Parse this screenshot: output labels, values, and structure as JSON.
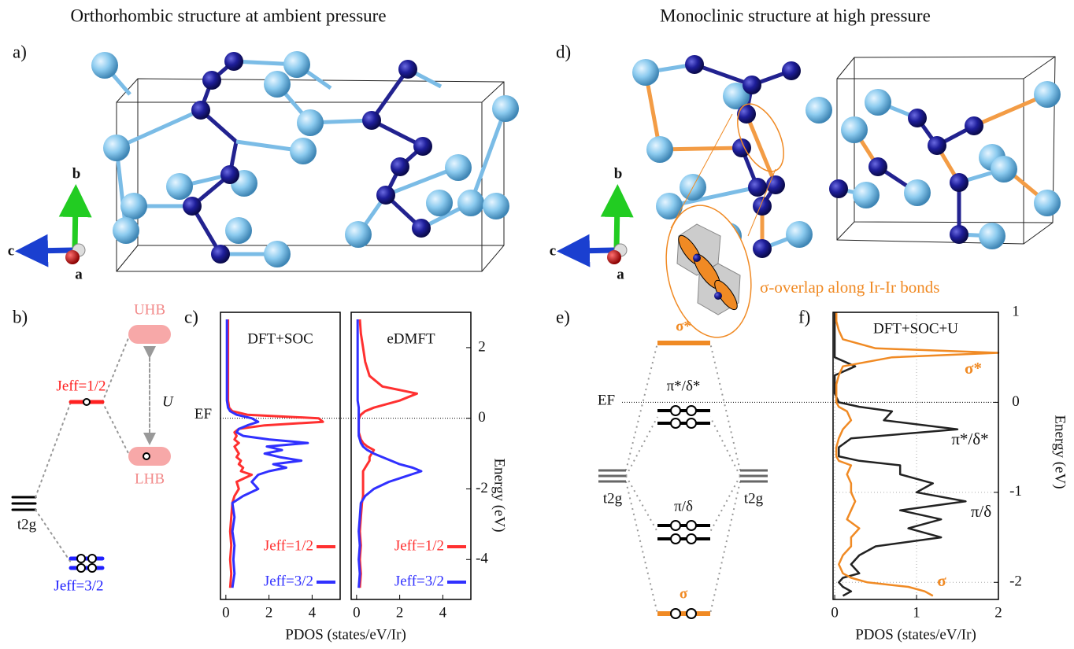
{
  "titles": [
    "Orthorhombic structure at ambient pressure",
    "Monoclinic structure at high pressure"
  ],
  "panel_labels": [
    "a)",
    "b)",
    "c)",
    "d)",
    "e)",
    "f)"
  ],
  "structures": [
    {
      "axes": [
        "b",
        "c",
        "a"
      ]
    },
    {
      "axes": [
        "b",
        "c",
        "a"
      ],
      "annotation": "σ-overlap along Ir-Ir bonds"
    }
  ],
  "diagram_b": {
    "upper": "UHB",
    "lower": "LHB",
    "interaction": "U",
    "jhalf": "Jeff=1/2",
    "jthreehalf": "Jeff=3/2",
    "t2g": "t2g"
  },
  "diagram_e": {
    "sigma_star": "σ*",
    "pi_star": "π*/δ*",
    "pi": "π/δ",
    "sigma": "σ",
    "fermi": "EF",
    "t2g_left": "t2g",
    "t2g_right": "t2g"
  },
  "chart_data": [
    {
      "type": "line",
      "orientation": "horizontal",
      "title": "DFT+SOC",
      "fermi_label": "EF",
      "legend": "lower right",
      "x": [
        -4.8,
        -4.4,
        -4,
        -3.6,
        -3.2,
        -2.8,
        -2.4,
        -2.2,
        -2.0,
        -1.8,
        -1.6,
        -1.5,
        -1.4,
        -1.3,
        -1.2,
        -1.1,
        -1.0,
        -0.9,
        -0.8,
        -0.7,
        -0.6,
        -0.5,
        -0.4,
        -0.3,
        -0.2,
        -0.1,
        0,
        0.1,
        0.2,
        0.3,
        0.5,
        0.7,
        0.9,
        1.2,
        1.6,
        2.0,
        2.4,
        2.8
      ],
      "series": [
        {
          "name": "Jeff=1/2",
          "color": "#ff3030",
          "values": [
            0.2,
            0.25,
            0.2,
            0.25,
            0.2,
            0.25,
            0.3,
            0.4,
            0.6,
            0.5,
            1.2,
            0.7,
            0.8,
            0.6,
            0.7,
            0.5,
            0.6,
            0.5,
            0.4,
            0.6,
            0.4,
            0.5,
            0.4,
            0.6,
            1.8,
            4.5,
            4.3,
            1.0,
            0.3,
            0.15,
            0.1,
            0.1,
            0.1,
            0.1,
            0.1,
            0.1,
            0.1,
            0.1
          ]
        },
        {
          "name": "Jeff=3/2",
          "color": "#3030ff",
          "values": [
            0.3,
            0.4,
            0.35,
            0.4,
            0.3,
            0.4,
            0.3,
            0.8,
            1.5,
            1.2,
            1.5,
            2.0,
            2.8,
            2.2,
            3.5,
            2.5,
            1.8,
            2.6,
            1.9,
            3.8,
            2.0,
            0.8,
            0.5,
            0.6,
            1.0,
            1.5,
            1.2,
            0.5,
            0.2,
            0.1,
            0.05,
            0.05,
            0.05,
            0.05,
            0.05,
            0.05,
            0.05,
            0.05
          ]
        }
      ],
      "xlim": [
        -5.13,
        3.0
      ],
      "ylim": [
        -0.25,
        5.3
      ],
      "yticks": [
        0,
        2,
        4
      ]
    },
    {
      "type": "line",
      "orientation": "horizontal",
      "title": "eDMFT",
      "legend": "lower right",
      "xlabel": "Energy (eV)",
      "ylabel": "PDOS (states/eV/Ir)",
      "x": [
        -4.8,
        -4.4,
        -4,
        -3.6,
        -3.2,
        -2.8,
        -2.4,
        -2.2,
        -2.0,
        -1.8,
        -1.6,
        -1.5,
        -1.4,
        -1.3,
        -1.2,
        -1.1,
        -1.0,
        -0.9,
        -0.8,
        -0.7,
        -0.6,
        -0.5,
        -0.4,
        -0.3,
        -0.2,
        -0.1,
        0,
        0.1,
        0.2,
        0.3,
        0.5,
        0.7,
        0.9,
        1.2,
        1.6,
        2.0,
        2.4,
        2.8
      ],
      "series": [
        {
          "name": "Jeff=1/2",
          "color": "#ff3030",
          "values": [
            0.15,
            0.2,
            0.15,
            0.2,
            0.15,
            0.2,
            0.25,
            0.3,
            0.3,
            0.3,
            0.3,
            0.3,
            0.4,
            0.5,
            0.6,
            0.6,
            0.7,
            0.8,
            0.5,
            0.3,
            0.2,
            0.15,
            0.1,
            0.1,
            0.1,
            0.1,
            0.1,
            0.2,
            0.4,
            0.8,
            2.0,
            2.8,
            1.2,
            0.6,
            0.4,
            0.3,
            0.2,
            0.15
          ]
        },
        {
          "name": "Jeff=3/2",
          "color": "#3030ff",
          "values": [
            0.1,
            0.15,
            0.1,
            0.15,
            0.1,
            0.15,
            0.2,
            0.4,
            0.8,
            1.5,
            2.5,
            3.0,
            2.6,
            2.0,
            1.6,
            1.2,
            0.8,
            0.5,
            0.3,
            0.2,
            0.15,
            0.1,
            0.1,
            0.1,
            0.1,
            0.1,
            0.1,
            0.1,
            0.1,
            0.1,
            0.05,
            0.05,
            0.05,
            0.05,
            0.05,
            0.05,
            0.05,
            0.05
          ]
        }
      ],
      "xlim": [
        -5.13,
        3.0
      ],
      "xticks": [
        -4,
        -2,
        0,
        2
      ],
      "ylim": [
        -0.25,
        5.3
      ],
      "yticks": [
        0,
        2,
        4
      ]
    },
    {
      "type": "line",
      "orientation": "horizontal",
      "title": "DFT+SOC+U",
      "grid": true,
      "fermi_line": true,
      "xlabel": "Energy (eV)",
      "ylabel": "PDOS (states/eV/Ir)",
      "annotations": [
        "σ*",
        "π*/δ*",
        "π/δ",
        "σ"
      ],
      "annotation_colors": [
        "#f08a24",
        "#111111",
        "#111111",
        "#f08a24"
      ],
      "x": [
        -2.15,
        -2.1,
        -2.05,
        -2.0,
        -1.95,
        -1.9,
        -1.8,
        -1.7,
        -1.6,
        -1.5,
        -1.4,
        -1.3,
        -1.2,
        -1.1,
        -1.0,
        -0.9,
        -0.8,
        -0.7,
        -0.65,
        -0.6,
        -0.5,
        -0.4,
        -0.3,
        -0.2,
        -0.1,
        -0.05,
        0,
        0.1,
        0.2,
        0.3,
        0.4,
        0.5,
        0.55,
        0.6,
        0.7,
        0.8,
        0.9,
        1.0
      ],
      "series": [
        {
          "color": "#222222",
          "values": [
            0.1,
            0.2,
            0.1,
            0.05,
            0.1,
            0.3,
            0.2,
            0.3,
            0.5,
            1.3,
            0.9,
            1.3,
            0.8,
            1.6,
            1.0,
            1.2,
            0.8,
            0.8,
            0.3,
            0.05,
            0.05,
            0.2,
            1.5,
            0.6,
            0.7,
            0.3,
            0.05,
            0,
            0,
            0,
            0.25,
            0,
            0,
            0,
            0,
            0,
            0,
            0
          ]
        },
        {
          "color": "#f08a24",
          "values": [
            1.2,
            1.1,
            0.9,
            0.4,
            0.2,
            0.1,
            0.05,
            0.1,
            0.2,
            0.2,
            0.3,
            0.15,
            0.2,
            0.25,
            0.2,
            0.2,
            0.15,
            0.2,
            0.05,
            0.02,
            0.02,
            0.05,
            0.1,
            0.2,
            0.15,
            0.05,
            0.02,
            0.02,
            0.02,
            0.05,
            0.1,
            0.7,
            2.0,
            0.5,
            0.1,
            0.05,
            0.02,
            0.02
          ]
        }
      ],
      "xlim": [
        -2.19,
        1.0
      ],
      "xticks": [
        -2,
        -1,
        0,
        1
      ],
      "ylim": [
        -0.02,
        2.0
      ],
      "yticks": [
        0,
        1,
        2
      ]
    }
  ]
}
